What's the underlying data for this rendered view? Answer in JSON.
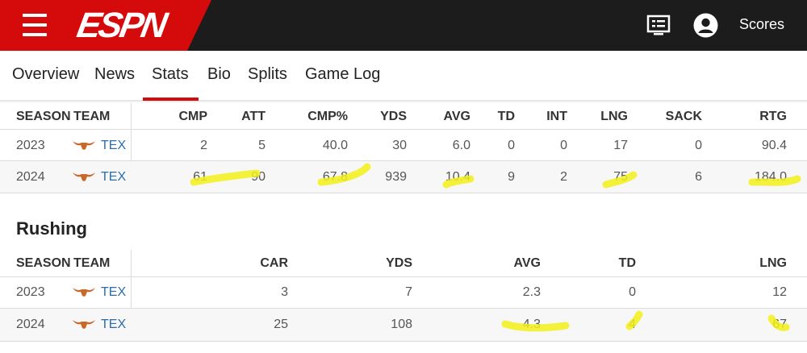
{
  "header": {
    "brand": "ESPN",
    "scores_label": "Scores",
    "colors": {
      "brand_red": "#d50a0a",
      "bar_dark": "#1c1c1c",
      "highlight": "#f3f01a",
      "link_blue": "#2a6da8"
    },
    "icons": [
      "menu-icon",
      "scoreboard-icon",
      "account-icon"
    ]
  },
  "nav": {
    "tabs": [
      "Overview",
      "News",
      "Stats",
      "Bio",
      "Splits",
      "Game Log"
    ],
    "active": "Stats"
  },
  "passing": {
    "headers": [
      "SEASON",
      "TEAM",
      "CMP",
      "ATT",
      "CMP%",
      "YDS",
      "AVG",
      "TD",
      "INT",
      "LNG",
      "SACK",
      "RTG"
    ],
    "rows": [
      {
        "season": "2023",
        "team": "TEX",
        "cmp": "2",
        "att": "5",
        "cmp_pct": "40.0",
        "yds": "30",
        "avg": "6.0",
        "td": "0",
        "int": "0",
        "lng": "17",
        "sack": "0",
        "rtg": "90.4"
      },
      {
        "season": "2024",
        "team": "TEX",
        "cmp": "61",
        "att": "90",
        "cmp_pct": "67.8",
        "yds": "939",
        "avg": "10.4",
        "td": "9",
        "int": "2",
        "lng": "75",
        "sack": "6",
        "rtg": "184.0"
      }
    ]
  },
  "rushing": {
    "title": "Rushing",
    "headers": [
      "SEASON",
      "TEAM",
      "CAR",
      "YDS",
      "AVG",
      "TD",
      "LNG"
    ],
    "rows": [
      {
        "season": "2023",
        "team": "TEX",
        "car": "3",
        "yds": "7",
        "avg": "2.3",
        "td": "0",
        "lng": "12"
      },
      {
        "season": "2024",
        "team": "TEX",
        "car": "25",
        "yds": "108",
        "avg": "4.3",
        "td": "4",
        "lng": "67"
      }
    ]
  }
}
